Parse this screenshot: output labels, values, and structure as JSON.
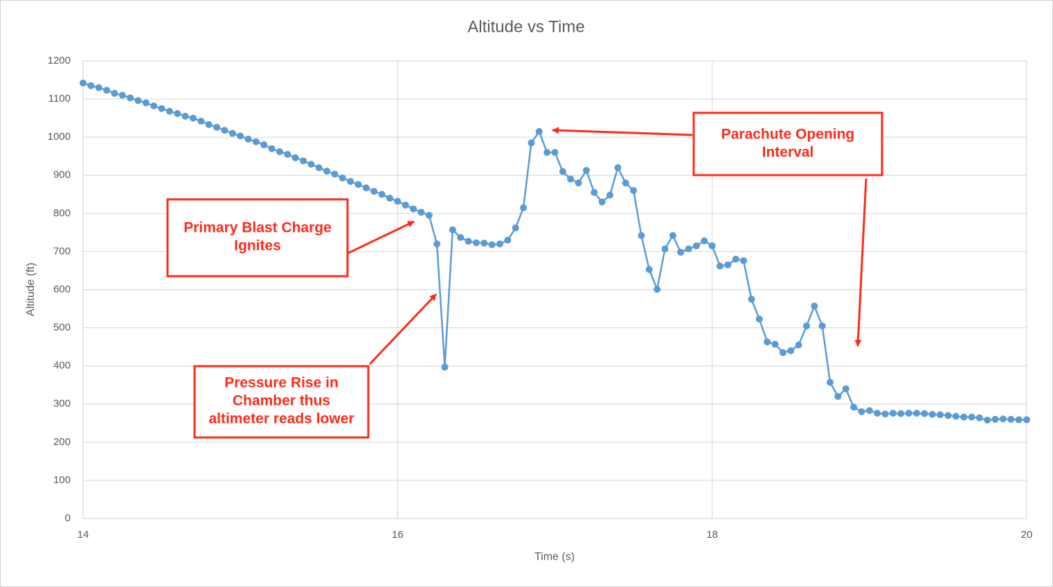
{
  "chart_data": {
    "type": "line",
    "title": "Altitude vs Time",
    "x_label": "Time (s)",
    "y_label": "Altitude (ft)",
    "x": [
      14,
      14.05,
      14.1,
      14.15,
      14.2,
      14.25,
      14.3,
      14.35,
      14.4,
      14.45,
      14.5,
      14.55,
      14.6,
      14.65,
      14.7,
      14.75,
      14.8,
      14.85,
      14.9,
      14.95,
      15,
      15.05,
      15.1,
      15.15,
      15.2,
      15.25,
      15.3,
      15.35,
      15.4,
      15.45,
      15.5,
      15.55,
      15.6,
      15.65,
      15.7,
      15.75,
      15.8,
      15.85,
      15.9,
      15.95,
      16,
      16.05,
      16.1,
      16.15,
      16.2,
      16.25,
      16.3,
      16.35,
      16.4,
      16.45,
      16.5,
      16.55,
      16.6,
      16.65,
      16.7,
      16.75,
      16.8,
      16.85,
      16.9,
      16.95,
      17,
      17.05,
      17.1,
      17.15,
      17.2,
      17.25,
      17.3,
      17.35,
      17.4,
      17.45,
      17.5,
      17.55,
      17.6,
      17.65,
      17.7,
      17.75,
      17.8,
      17.85,
      17.9,
      17.95,
      18,
      18.05,
      18.1,
      18.15,
      18.2,
      18.25,
      18.3,
      18.35,
      18.4,
      18.45,
      18.5,
      18.55,
      18.6,
      18.65,
      18.7,
      18.75,
      18.8,
      18.85,
      18.9,
      18.95,
      19,
      19.05,
      19.1,
      19.15,
      19.2,
      19.25,
      19.3,
      19.35,
      19.4,
      19.45,
      19.5,
      19.55,
      19.6,
      19.65,
      19.7,
      19.75,
      19.8,
      19.85,
      19.9,
      19.95,
      20
    ],
    "series": [
      {
        "name": "Altitude",
        "color": "#5b9bd5",
        "values": [
          1142,
          1135,
          1130,
          1123,
          1115,
          1110,
          1103,
          1096,
          1090,
          1082,
          1075,
          1068,
          1062,
          1055,
          1050,
          1042,
          1033,
          1026,
          1018,
          1010,
          1003,
          995,
          988,
          980,
          970,
          962,
          955,
          946,
          938,
          929,
          920,
          911,
          903,
          893,
          884,
          876,
          867,
          858,
          850,
          840,
          832,
          822,
          812,
          803,
          795,
          720,
          397,
          757,
          737,
          727,
          723,
          722,
          718,
          720,
          730,
          762,
          815,
          985,
          1015,
          960,
          960,
          910,
          890,
          880,
          913,
          855,
          830,
          848,
          920,
          880,
          860,
          742,
          653,
          601,
          707,
          742,
          698,
          707,
          715,
          728,
          715,
          662,
          665,
          680,
          676,
          575,
          523,
          463,
          457,
          435,
          440,
          455,
          505,
          557,
          505,
          357,
          320,
          340,
          292,
          280,
          283,
          276,
          274,
          276,
          275,
          276,
          276,
          275,
          273,
          272,
          270,
          268,
          266,
          266,
          264,
          258,
          260,
          261,
          260,
          259,
          259
        ]
      }
    ],
    "xlim": [
      14,
      20
    ],
    "xticks": [
      14,
      16,
      18,
      20
    ],
    "ylim": [
      0,
      1200
    ],
    "yticks": [
      0,
      100,
      200,
      300,
      400,
      500,
      600,
      700,
      800,
      900,
      1000,
      1100,
      1200
    ],
    "grid": true,
    "annotations": [
      {
        "lines": [
          "Primary Blast Charge",
          "Ignites"
        ]
      },
      {
        "lines": [
          "Pressure Rise in",
          "Chamber thus",
          "altimeter reads lower"
        ]
      },
      {
        "lines": [
          "Parachute Opening",
          "Interval"
        ]
      }
    ]
  }
}
